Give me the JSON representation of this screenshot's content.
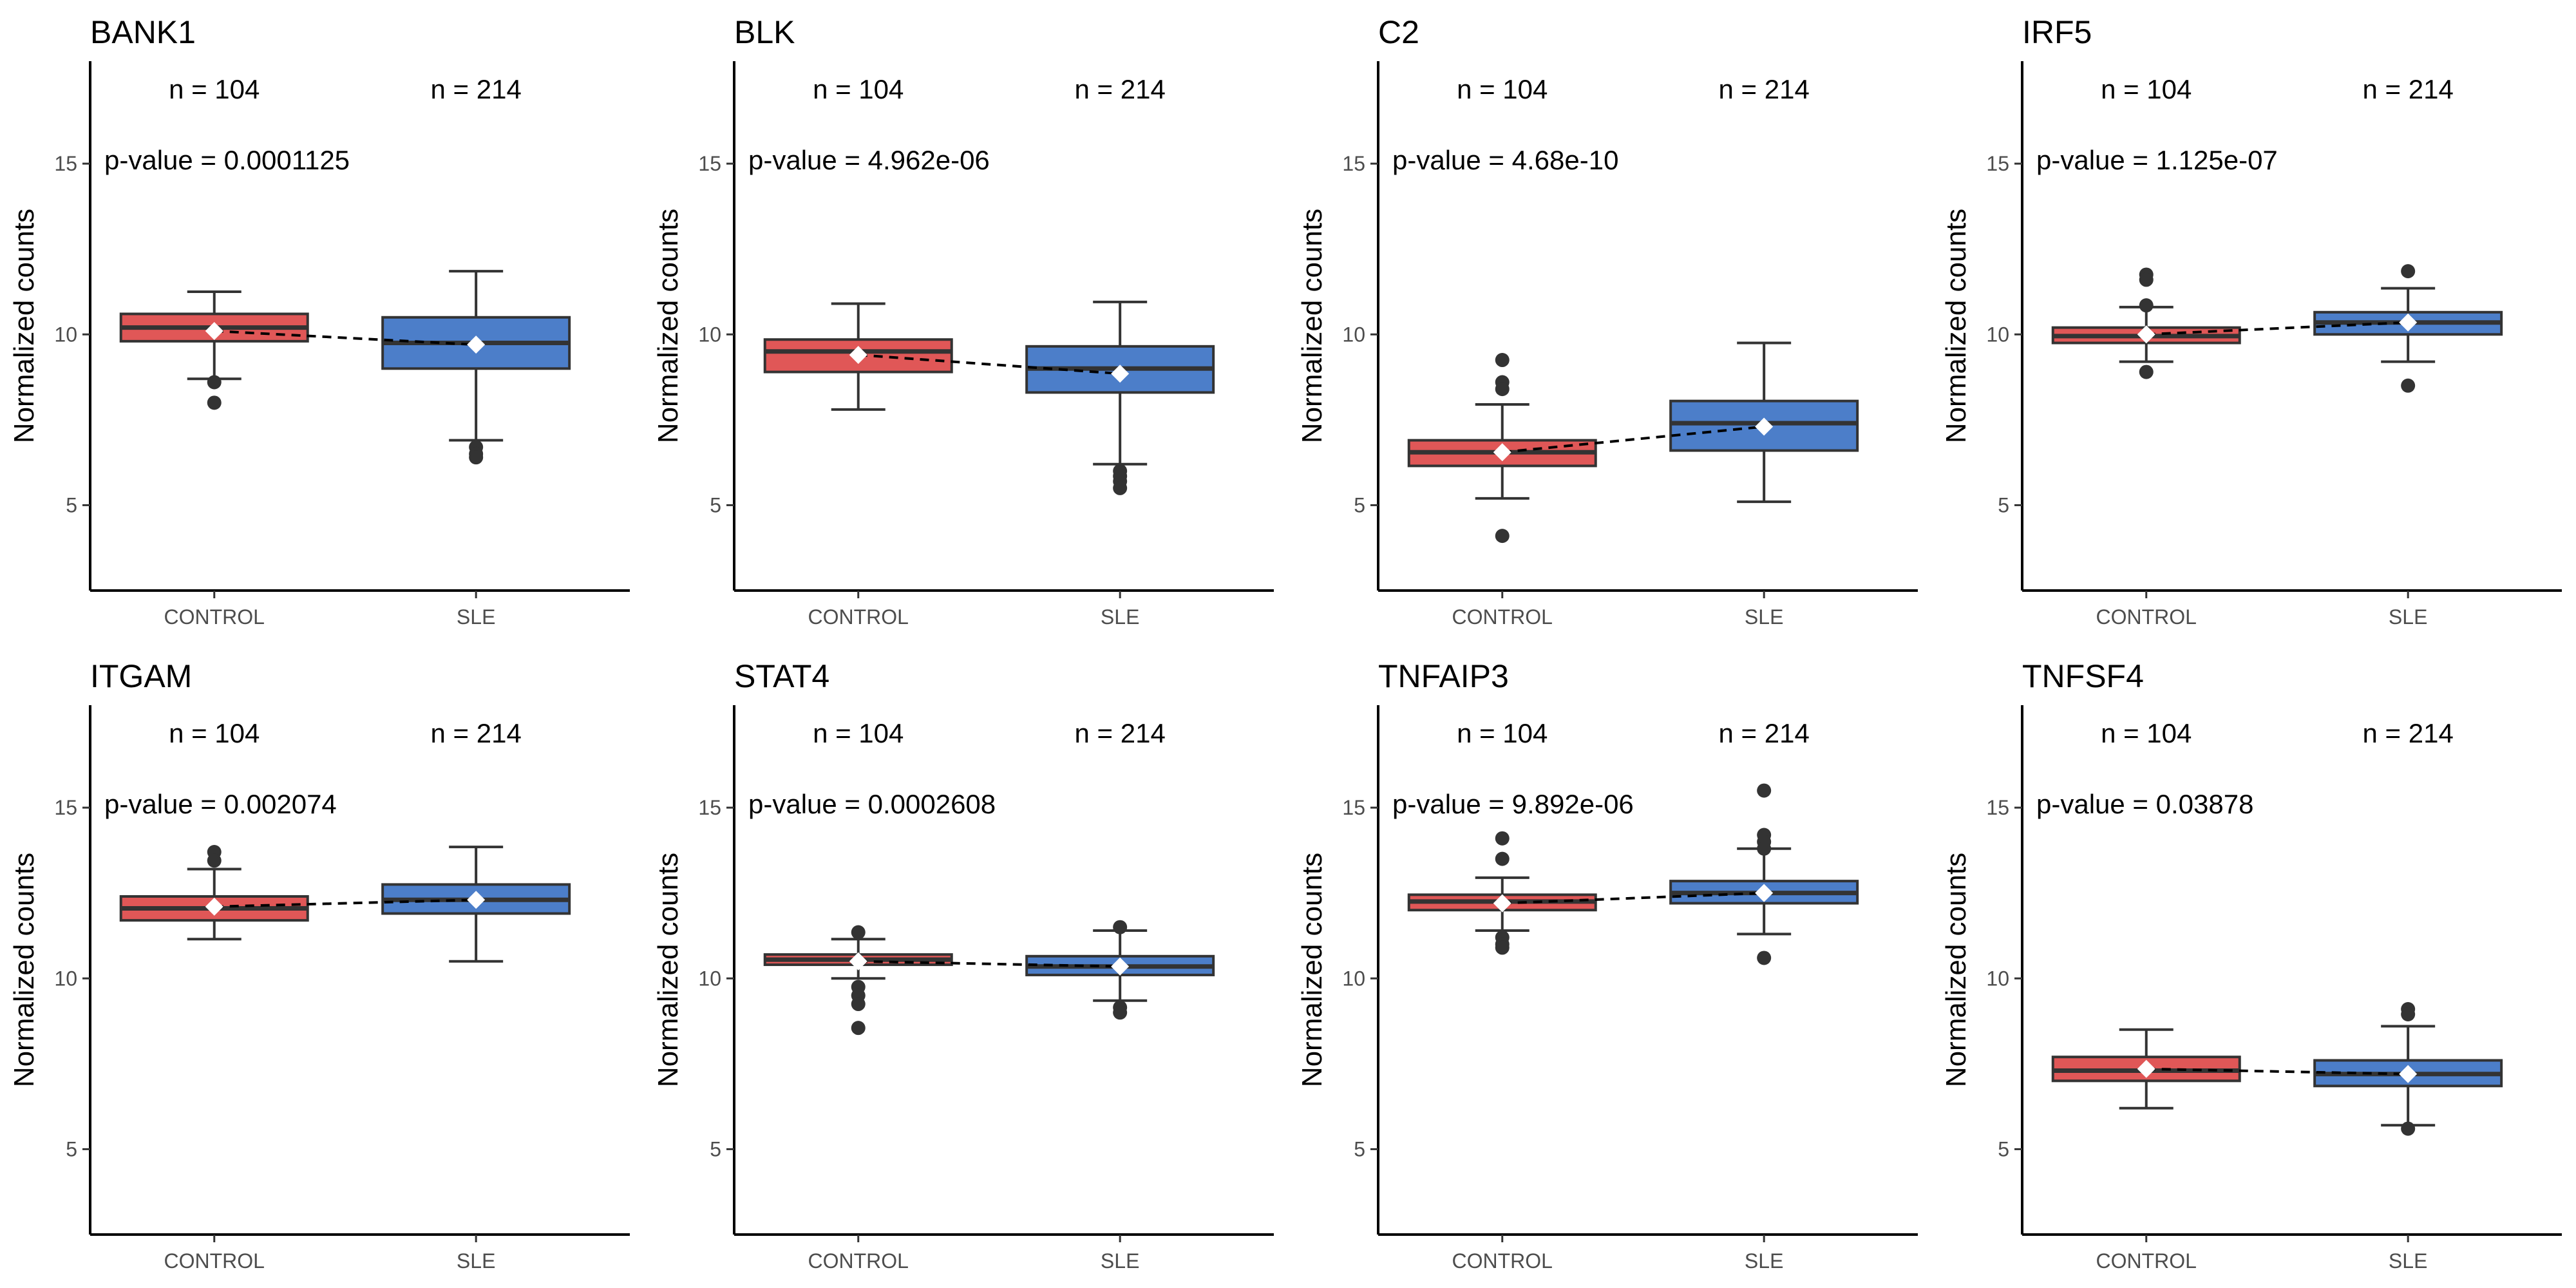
{
  "figure": {
    "ylabel": "Normalized counts"
  },
  "colors": {
    "control": "#E05757",
    "sle": "#4C7EC9",
    "outline": "#333333",
    "mean_marker": "#ffffff"
  },
  "chart_data": [
    {
      "type": "box",
      "title": "BANK1",
      "categories": [
        "CONTROL",
        "SLE"
      ],
      "n_labels": [
        "n = 104",
        "n = 214"
      ],
      "pvalue_label": "p-value = 0.0001125",
      "ylabel": "Normalized counts",
      "ylim": [
        2.5,
        18
      ],
      "yticks": [
        5,
        10,
        15
      ],
      "series": [
        {
          "name": "CONTROL",
          "whisker_low": 8.7,
          "q1": 9.8,
          "median": 10.2,
          "q3": 10.6,
          "whisker_high": 11.25,
          "mean": 10.1,
          "outliers": [
            8.6,
            8.0
          ]
        },
        {
          "name": "SLE",
          "whisker_low": 6.9,
          "q1": 9.0,
          "median": 9.75,
          "q3": 10.5,
          "whisker_high": 11.85,
          "mean": 9.7,
          "outliers": [
            6.7,
            6.5,
            6.4
          ]
        }
      ]
    },
    {
      "type": "box",
      "title": "BLK",
      "categories": [
        "CONTROL",
        "SLE"
      ],
      "n_labels": [
        "n = 104",
        "n = 214"
      ],
      "pvalue_label": "p-value = 4.962e-06",
      "ylabel": "Normalized counts",
      "ylim": [
        2.5,
        18
      ],
      "yticks": [
        5,
        10,
        15
      ],
      "series": [
        {
          "name": "CONTROL",
          "whisker_low": 7.8,
          "q1": 8.9,
          "median": 9.5,
          "q3": 9.85,
          "whisker_high": 10.9,
          "mean": 9.4,
          "outliers": []
        },
        {
          "name": "SLE",
          "whisker_low": 6.2,
          "q1": 8.3,
          "median": 9.0,
          "q3": 9.65,
          "whisker_high": 10.95,
          "mean": 8.85,
          "outliers": [
            6.0,
            5.85,
            5.7,
            5.5
          ]
        }
      ]
    },
    {
      "type": "box",
      "title": "C2",
      "categories": [
        "CONTROL",
        "SLE"
      ],
      "n_labels": [
        "n = 104",
        "n = 214"
      ],
      "pvalue_label": "p-value = 4.68e-10",
      "ylabel": "Normalized counts",
      "ylim": [
        2.5,
        18
      ],
      "yticks": [
        5,
        10,
        15
      ],
      "series": [
        {
          "name": "CONTROL",
          "whisker_low": 5.2,
          "q1": 6.15,
          "median": 6.55,
          "q3": 6.9,
          "whisker_high": 7.95,
          "mean": 6.55,
          "outliers": [
            9.25,
            8.6,
            8.4,
            4.1
          ]
        },
        {
          "name": "SLE",
          "whisker_low": 5.1,
          "q1": 6.6,
          "median": 7.4,
          "q3": 8.05,
          "whisker_high": 9.75,
          "mean": 7.3,
          "outliers": []
        }
      ]
    },
    {
      "type": "box",
      "title": "IRF5",
      "categories": [
        "CONTROL",
        "SLE"
      ],
      "n_labels": [
        "n = 104",
        "n = 214"
      ],
      "pvalue_label": "p-value = 1.125e-07",
      "ylabel": "Normalized counts",
      "ylim": [
        2.5,
        18
      ],
      "yticks": [
        5,
        10,
        15
      ],
      "series": [
        {
          "name": "CONTROL",
          "whisker_low": 9.2,
          "q1": 9.75,
          "median": 9.95,
          "q3": 10.2,
          "whisker_high": 10.8,
          "mean": 10.0,
          "outliers": [
            11.75,
            11.6,
            10.85,
            8.9
          ]
        },
        {
          "name": "SLE",
          "whisker_low": 9.2,
          "q1": 10.0,
          "median": 10.35,
          "q3": 10.65,
          "whisker_high": 11.35,
          "mean": 10.35,
          "outliers": [
            11.85,
            8.5
          ]
        }
      ]
    },
    {
      "type": "box",
      "title": "ITGAM",
      "categories": [
        "CONTROL",
        "SLE"
      ],
      "n_labels": [
        "n = 104",
        "n = 214"
      ],
      "pvalue_label": "p-value = 0.002074",
      "ylabel": "Normalized counts",
      "ylim": [
        2.5,
        18
      ],
      "yticks": [
        5,
        10,
        15
      ],
      "series": [
        {
          "name": "CONTROL",
          "whisker_low": 11.15,
          "q1": 11.7,
          "median": 12.05,
          "q3": 12.4,
          "whisker_high": 13.2,
          "mean": 12.1,
          "outliers": [
            13.7,
            13.45
          ]
        },
        {
          "name": "SLE",
          "whisker_low": 10.5,
          "q1": 11.9,
          "median": 12.3,
          "q3": 12.75,
          "whisker_high": 13.85,
          "mean": 12.3,
          "outliers": []
        }
      ]
    },
    {
      "type": "box",
      "title": "STAT4",
      "categories": [
        "CONTROL",
        "SLE"
      ],
      "n_labels": [
        "n = 104",
        "n = 214"
      ],
      "pvalue_label": "p-value = 0.0002608",
      "ylabel": "Normalized counts",
      "ylim": [
        2.5,
        18
      ],
      "yticks": [
        5,
        10,
        15
      ],
      "series": [
        {
          "name": "CONTROL",
          "whisker_low": 10.0,
          "q1": 10.4,
          "median": 10.55,
          "q3": 10.7,
          "whisker_high": 11.15,
          "mean": 10.5,
          "outliers": [
            11.35,
            9.75,
            9.5,
            9.25,
            8.55
          ]
        },
        {
          "name": "SLE",
          "whisker_low": 9.35,
          "q1": 10.1,
          "median": 10.35,
          "q3": 10.65,
          "whisker_high": 11.4,
          "mean": 10.35,
          "outliers": [
            11.5,
            9.15,
            9.0
          ]
        }
      ]
    },
    {
      "type": "box",
      "title": "TNFAIP3",
      "categories": [
        "CONTROL",
        "SLE"
      ],
      "n_labels": [
        "n = 104",
        "n = 214"
      ],
      "pvalue_label": "p-value = 9.892e-06",
      "ylabel": "Normalized counts",
      "ylim": [
        2.5,
        18
      ],
      "yticks": [
        5,
        10,
        15
      ],
      "series": [
        {
          "name": "CONTROL",
          "whisker_low": 11.4,
          "q1": 12.0,
          "median": 12.25,
          "q3": 12.45,
          "whisker_high": 12.95,
          "mean": 12.2,
          "outliers": [
            14.1,
            13.5,
            11.2,
            11.0,
            10.9
          ]
        },
        {
          "name": "SLE",
          "whisker_low": 11.3,
          "q1": 12.2,
          "median": 12.5,
          "q3": 12.85,
          "whisker_high": 13.8,
          "mean": 12.5,
          "outliers": [
            15.5,
            14.2,
            14.0,
            13.8,
            10.6
          ]
        }
      ]
    },
    {
      "type": "box",
      "title": "TNFSF4",
      "categories": [
        "CONTROL",
        "SLE"
      ],
      "n_labels": [
        "n = 104",
        "n = 214"
      ],
      "pvalue_label": "p-value = 0.03878",
      "ylabel": "Normalized counts",
      "ylim": [
        2.5,
        18
      ],
      "yticks": [
        5,
        10,
        15
      ],
      "series": [
        {
          "name": "CONTROL",
          "whisker_low": 6.2,
          "q1": 7.0,
          "median": 7.3,
          "q3": 7.7,
          "whisker_high": 8.5,
          "mean": 7.35,
          "outliers": []
        },
        {
          "name": "SLE",
          "whisker_low": 5.7,
          "q1": 6.85,
          "median": 7.2,
          "q3": 7.6,
          "whisker_high": 8.6,
          "mean": 7.2,
          "outliers": [
            9.1,
            8.95,
            5.6
          ]
        }
      ]
    }
  ]
}
